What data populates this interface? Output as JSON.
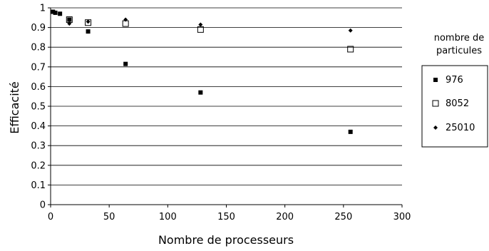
{
  "chart_data": {
    "type": "scatter",
    "title": "",
    "xlabel": "Nombre de processeurs",
    "ylabel": "Efficacité",
    "xlim": [
      0,
      300
    ],
    "ylim": [
      0,
      1
    ],
    "x_ticks": [
      "0",
      "50",
      "100",
      "150",
      "200",
      "250",
      "300"
    ],
    "y_ticks": [
      "0",
      "0.1",
      "0.2",
      "0.3",
      "0.4",
      "0.5",
      "0.6",
      "0.7",
      "0.8",
      "0.9",
      "1"
    ],
    "grid": "horizontal",
    "legend_title": [
      "nombre de",
      "particules"
    ],
    "legend_position": "right",
    "series": [
      {
        "name": "976",
        "marker": "filled-square",
        "color": "#000000",
        "points": [
          [
            2,
            0.98
          ],
          [
            4,
            0.975
          ],
          [
            8,
            0.97
          ],
          [
            16,
            0.94
          ],
          [
            32,
            0.88
          ],
          [
            64,
            0.715
          ],
          [
            128,
            0.57
          ],
          [
            256,
            0.37
          ]
        ]
      },
      {
        "name": "8052",
        "marker": "open-square",
        "color": "#000000",
        "points": [
          [
            16,
            0.94
          ],
          [
            32,
            0.925
          ],
          [
            64,
            0.92
          ],
          [
            128,
            0.89
          ],
          [
            256,
            0.79
          ]
        ]
      },
      {
        "name": "25010",
        "marker": "diamond",
        "color": "#000000",
        "points": [
          [
            16,
            0.92
          ],
          [
            32,
            0.93
          ],
          [
            64,
            0.94
          ],
          [
            128,
            0.915
          ],
          [
            256,
            0.885
          ]
        ]
      }
    ]
  }
}
